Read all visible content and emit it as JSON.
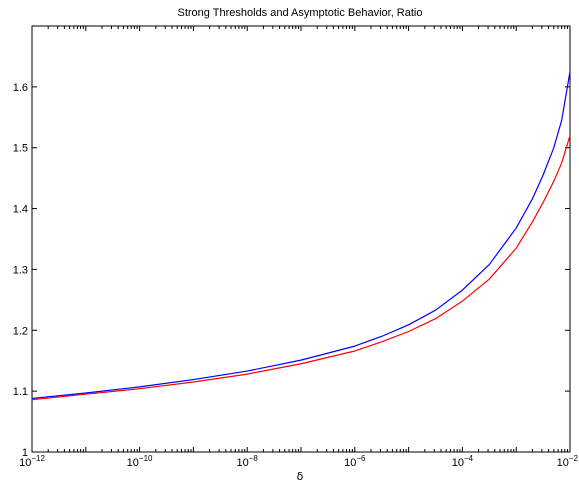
{
  "chart_data": {
    "type": "line",
    "title": "Strong Thresholds and Asymptotic Behavior, Ratio",
    "xlabel": "δ",
    "ylabel": "",
    "x_scale": "log",
    "x_tick_values": [
      1e-12,
      1e-10,
      1e-08,
      1e-06,
      0.0001,
      0.01
    ],
    "x_tick_labels": [
      {
        "base": "10",
        "exp": "−12"
      },
      {
        "base": "10",
        "exp": "−10"
      },
      {
        "base": "10",
        "exp": "−8"
      },
      {
        "base": "10",
        "exp": "−6"
      },
      {
        "base": "10",
        "exp": "−4"
      },
      {
        "base": "10",
        "exp": "−2"
      }
    ],
    "xlim": [
      1e-12,
      0.01
    ],
    "ylim": [
      1.0,
      1.7
    ],
    "y_ticks": [
      "1",
      "1.1",
      "1.2",
      "1.3",
      "1.4",
      "1.5",
      "1.6"
    ],
    "grid": false,
    "series": [
      {
        "color": "#0000ff",
        "x": [
          1e-12,
          1e-11,
          1e-10,
          1e-09,
          1e-08,
          1e-07,
          1e-06,
          3.16e-06,
          1e-05,
          3.16e-05,
          0.0001,
          0.000316,
          0.001,
          0.002,
          0.00316,
          0.005,
          0.007,
          0.01
        ],
        "y": [
          1.088,
          1.097,
          1.107,
          1.119,
          1.133,
          1.151,
          1.174,
          1.19,
          1.209,
          1.233,
          1.266,
          1.308,
          1.368,
          1.416,
          1.455,
          1.5,
          1.545,
          1.625
        ]
      },
      {
        "color": "#ff0000",
        "x": [
          1e-12,
          1e-11,
          1e-10,
          1e-09,
          1e-08,
          1e-07,
          1e-06,
          3.16e-06,
          1e-05,
          3.16e-05,
          0.0001,
          0.000316,
          0.001,
          0.002,
          0.00316,
          0.005,
          0.007,
          0.01
        ],
        "y": [
          1.086,
          1.095,
          1.104,
          1.115,
          1.128,
          1.145,
          1.166,
          1.181,
          1.198,
          1.219,
          1.248,
          1.284,
          1.335,
          1.378,
          1.41,
          1.445,
          1.475,
          1.52
        ]
      }
    ]
  }
}
